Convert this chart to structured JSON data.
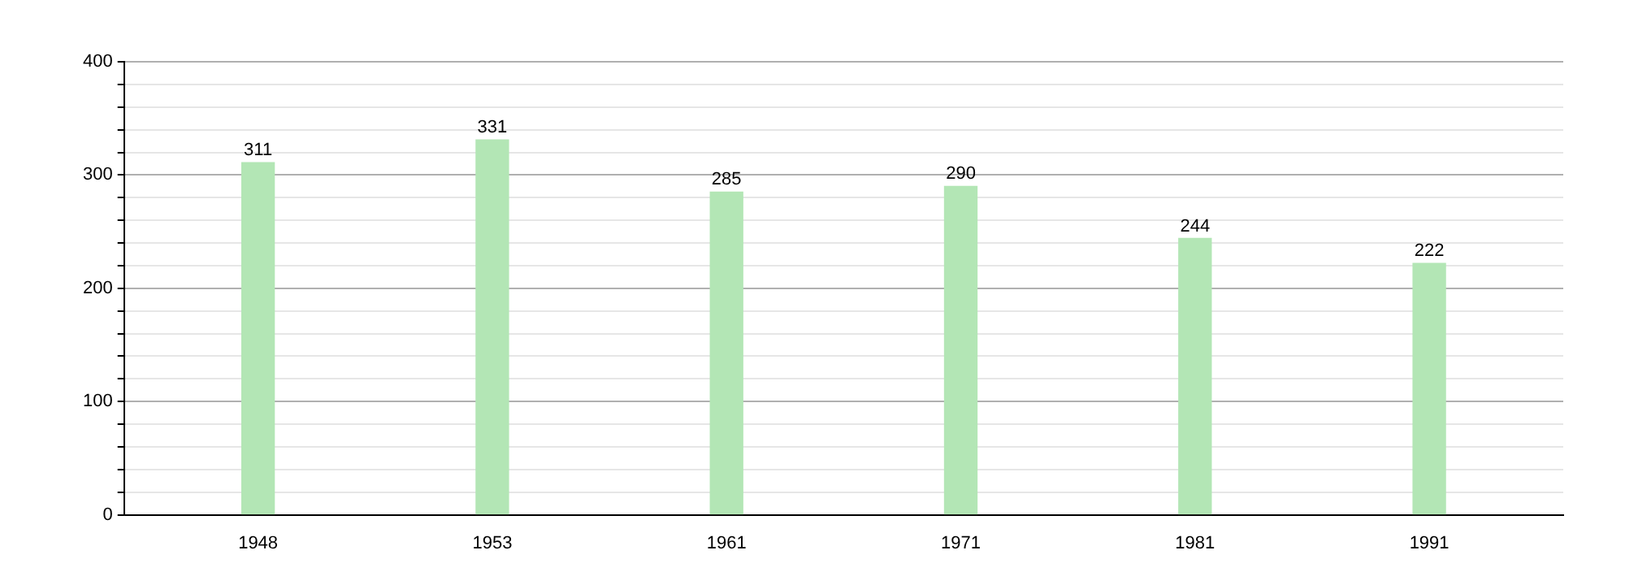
{
  "chart_data": {
    "type": "bar",
    "categories": [
      "1948",
      "1953",
      "1961",
      "1971",
      "1981",
      "1991"
    ],
    "values": [
      311,
      331,
      285,
      290,
      244,
      222
    ],
    "color": "#b3e6b5",
    "ylim": [
      0,
      400
    ],
    "yticks": [
      0,
      {
        "value": 20,
        "label": null
      },
      {
        "value": 40,
        "label": null
      },
      {
        "value": 60,
        "label": null
      },
      {
        "value": 80,
        "label": null
      },
      100,
      {
        "value": 120,
        "label": null
      },
      {
        "value": 140,
        "label": null
      },
      {
        "value": 160,
        "label": null
      },
      {
        "value": 180,
        "label": null
      },
      200,
      {
        "value": 220,
        "label": null
      },
      {
        "value": 240,
        "label": null
      },
      {
        "value": 260,
        "label": null
      },
      {
        "value": 280,
        "label": null
      },
      300,
      {
        "value": 320,
        "label": null
      },
      {
        "value": 340,
        "label": null
      },
      {
        "value": 360,
        "label": null
      },
      {
        "value": 380,
        "label": null
      },
      400
    ],
    "grid": "y",
    "data_labels": true,
    "legend": false
  }
}
